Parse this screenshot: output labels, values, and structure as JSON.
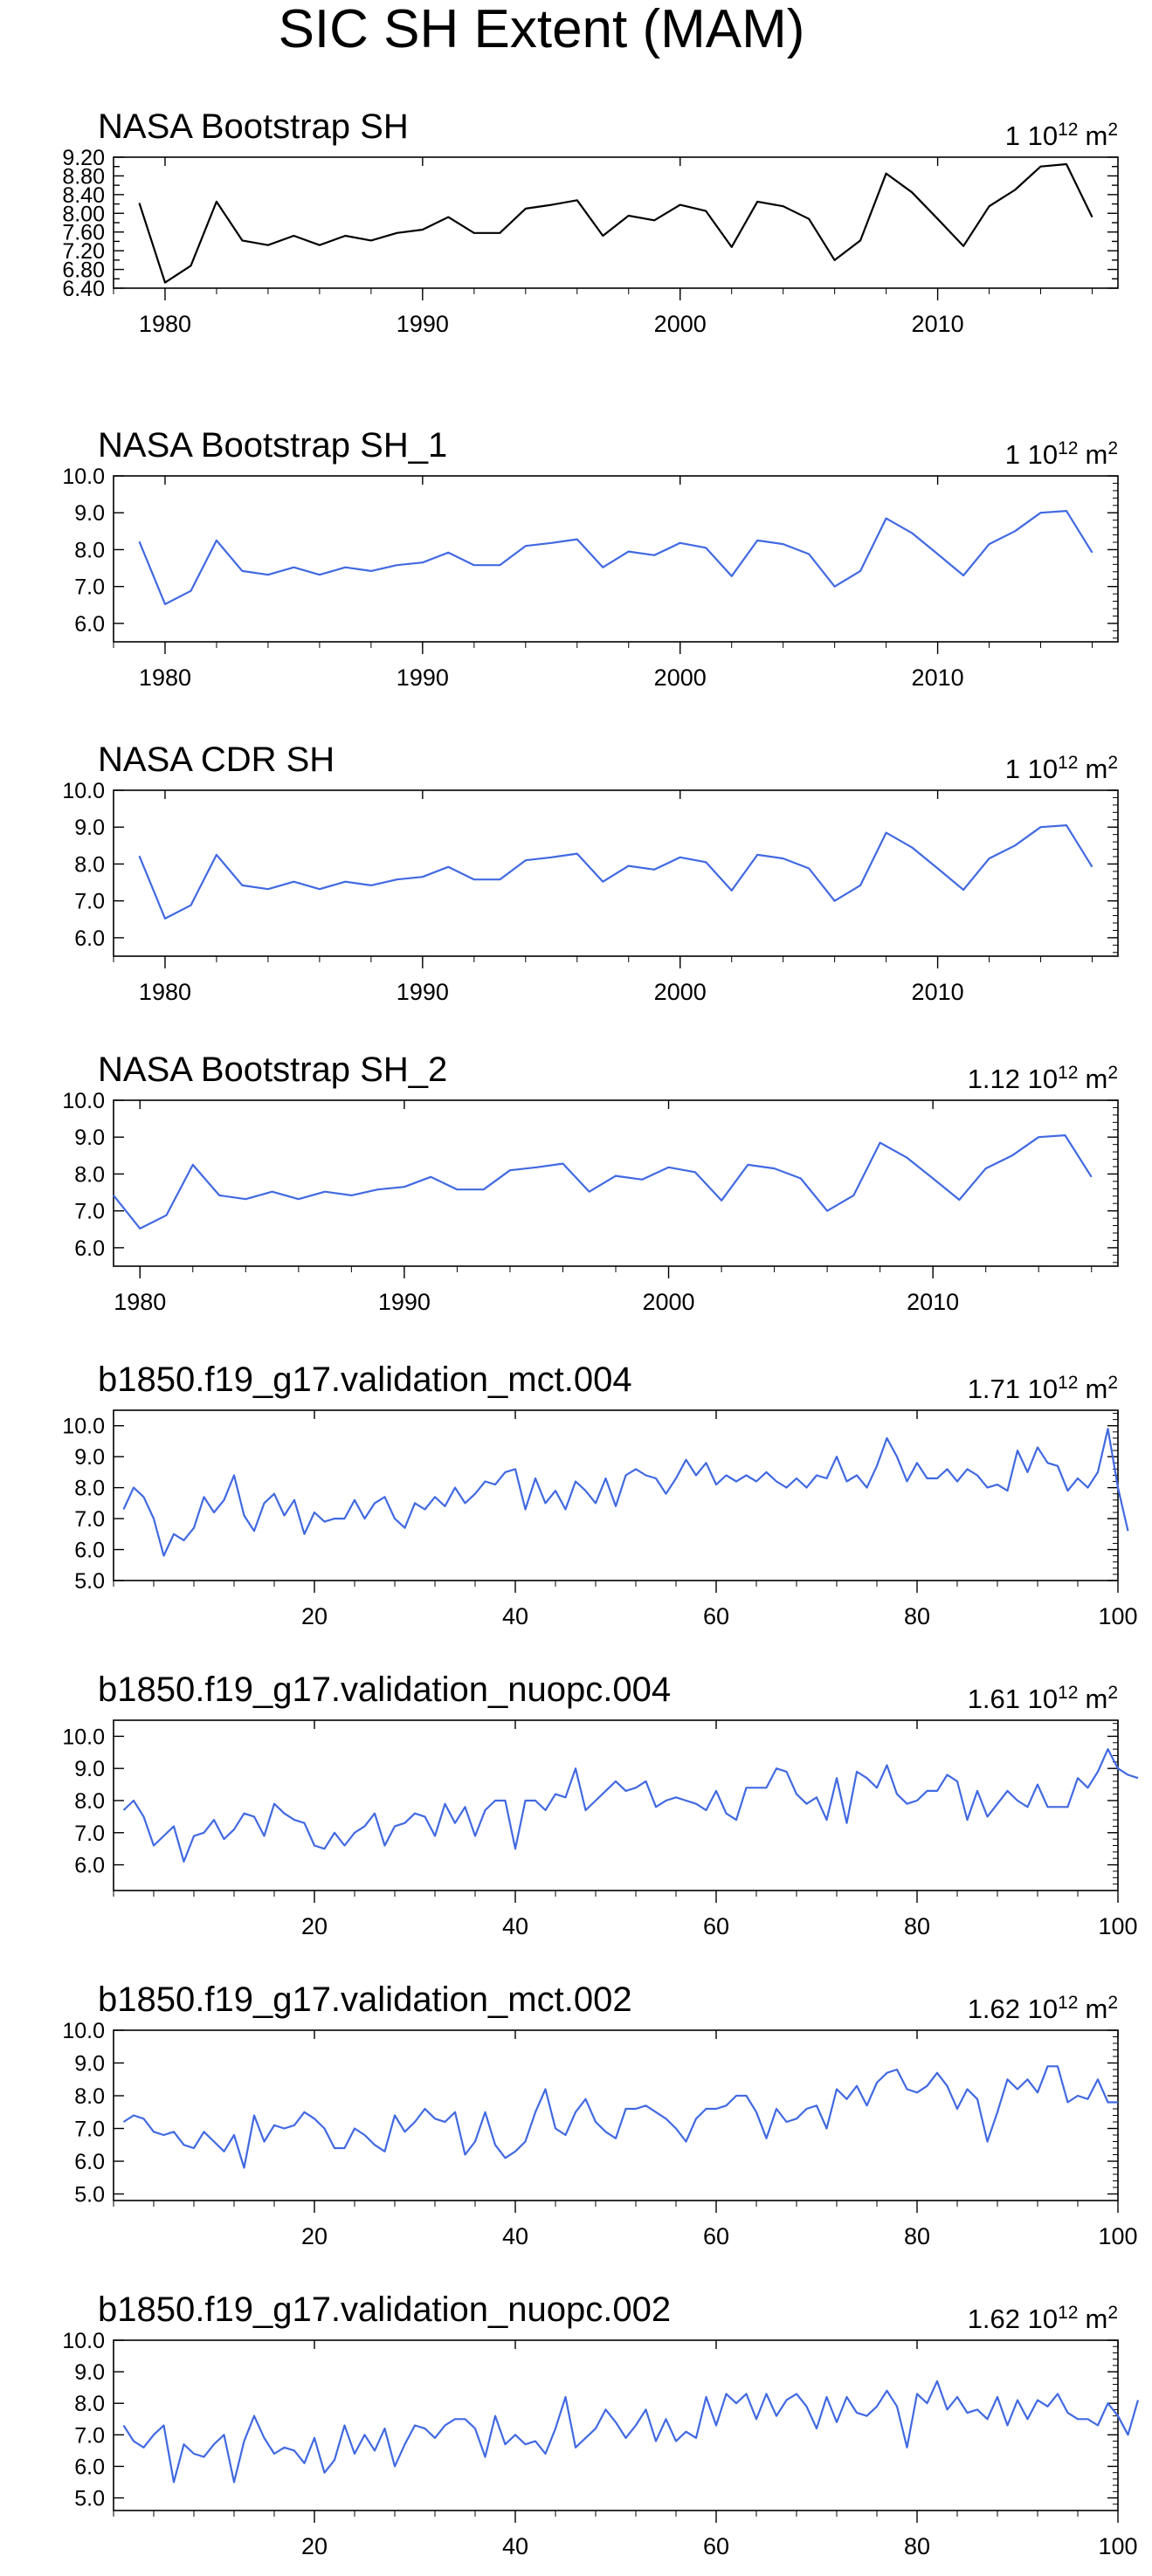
{
  "figure_title": "SIC SH Extent (MAM)",
  "colors": {
    "obs_line": "#000000",
    "model_line": "#4169e1",
    "axis": "#000000"
  },
  "chart_data": [
    {
      "type": "line",
      "title": "NASA Bootstrap SH",
      "scale_prefix": "1",
      "unit_base": "10",
      "unit_exp": "12",
      "unit_suffix": "m",
      "unit_suffix_exp": "2",
      "line_color": "#000000",
      "xlim": [
        1978,
        2017
      ],
      "ylim": [
        6.4,
        9.2
      ],
      "yticks": [
        "6.40",
        "6.80",
        "7.20",
        "7.60",
        "8.00",
        "8.40",
        "8.80",
        "9.20"
      ],
      "ytick_values": [
        6.4,
        6.6,
        6.8,
        7.0,
        7.2,
        7.4,
        7.6,
        7.8,
        8.0,
        8.2,
        8.4,
        8.6,
        8.8,
        9.0,
        9.2
      ],
      "xticks": [
        "1980",
        "1990",
        "2000",
        "2010"
      ],
      "xtick_values": [
        1980,
        1990,
        2000,
        2010
      ],
      "x_start": 1979,
      "values": [
        8.22,
        6.52,
        6.88,
        8.25,
        7.42,
        7.32,
        7.52,
        7.32,
        7.52,
        7.42,
        7.58,
        7.65,
        7.92,
        7.58,
        7.58,
        8.1,
        8.18,
        8.28,
        7.52,
        7.95,
        7.85,
        8.18,
        8.05,
        7.28,
        8.25,
        8.15,
        7.88,
        7.0,
        7.42,
        8.85,
        8.45,
        7.88,
        7.3,
        8.15,
        8.5,
        9.0,
        9.05,
        7.92
      ]
    },
    {
      "type": "line",
      "title": "NASA Bootstrap SH_1",
      "scale_prefix": "1",
      "unit_base": "10",
      "unit_exp": "12",
      "unit_suffix": "m",
      "unit_suffix_exp": "2",
      "line_color": "#4169e1",
      "xlim": [
        1978,
        2017
      ],
      "ylim": [
        5.5,
        10.0
      ],
      "yticks": [
        "6.0",
        "7.0",
        "8.0",
        "9.0",
        "10.0"
      ],
      "ytick_values": [
        6.0,
        7.0,
        8.0,
        9.0,
        10.0
      ],
      "xticks": [
        "1980",
        "1990",
        "2000",
        "2010"
      ],
      "xtick_values": [
        1980,
        1990,
        2000,
        2010
      ],
      "x_start": 1979,
      "values": [
        8.22,
        6.52,
        6.88,
        8.25,
        7.42,
        7.32,
        7.52,
        7.32,
        7.52,
        7.42,
        7.58,
        7.65,
        7.92,
        7.58,
        7.58,
        8.1,
        8.18,
        8.28,
        7.52,
        7.95,
        7.85,
        8.18,
        8.05,
        7.28,
        8.25,
        8.15,
        7.88,
        7.0,
        7.42,
        8.85,
        8.45,
        7.88,
        7.3,
        8.15,
        8.5,
        9.0,
        9.05,
        7.92
      ]
    },
    {
      "type": "line",
      "title": "NASA CDR SH",
      "scale_prefix": "1",
      "unit_base": "10",
      "unit_exp": "12",
      "unit_suffix": "m",
      "unit_suffix_exp": "2",
      "line_color": "#4169e1",
      "xlim": [
        1978,
        2017
      ],
      "ylim": [
        5.5,
        10.0
      ],
      "yticks": [
        "6.0",
        "7.0",
        "8.0",
        "9.0",
        "10.0"
      ],
      "ytick_values": [
        6.0,
        7.0,
        8.0,
        9.0,
        10.0
      ],
      "xticks": [
        "1980",
        "1990",
        "2000",
        "2010"
      ],
      "xtick_values": [
        1980,
        1990,
        2000,
        2010
      ],
      "x_start": 1979,
      "values": [
        8.22,
        6.52,
        6.88,
        8.25,
        7.42,
        7.32,
        7.52,
        7.32,
        7.52,
        7.42,
        7.58,
        7.65,
        7.92,
        7.58,
        7.58,
        8.1,
        8.18,
        8.28,
        7.52,
        7.95,
        7.85,
        8.18,
        8.05,
        7.28,
        8.25,
        8.15,
        7.88,
        7.0,
        7.42,
        8.85,
        8.45,
        7.88,
        7.3,
        8.15,
        8.5,
        9.0,
        9.05,
        7.92
      ]
    },
    {
      "type": "line",
      "title": "NASA Bootstrap SH_2",
      "scale_prefix": "1.12",
      "unit_base": "10",
      "unit_exp": "12",
      "unit_suffix": "m",
      "unit_suffix_exp": "2",
      "line_color": "#4169e1",
      "xlim": [
        1979,
        2017
      ],
      "ylim": [
        5.5,
        10.0
      ],
      "yticks": [
        "6.0",
        "7.0",
        "8.0",
        "9.0",
        "10.0"
      ],
      "ytick_values": [
        6.0,
        7.0,
        8.0,
        9.0,
        10.0
      ],
      "xticks": [
        "1980",
        "1990",
        "2000",
        "2010"
      ],
      "xtick_values": [
        1980,
        1990,
        2000,
        2010
      ],
      "x_start": 1979,
      "values": [
        7.42,
        6.52,
        6.88,
        8.25,
        7.42,
        7.32,
        7.52,
        7.32,
        7.52,
        7.42,
        7.58,
        7.65,
        7.92,
        7.58,
        7.58,
        8.1,
        8.18,
        8.28,
        7.52,
        7.95,
        7.85,
        8.18,
        8.05,
        7.28,
        8.25,
        8.15,
        7.88,
        7.0,
        7.42,
        8.85,
        8.45,
        7.88,
        7.3,
        8.15,
        8.5,
        9.0,
        9.05,
        7.92
      ]
    },
    {
      "type": "line",
      "title": "b1850.f19_g17.validation_mct.004",
      "scale_prefix": "1.71",
      "unit_base": "10",
      "unit_exp": "12",
      "unit_suffix": "m",
      "unit_suffix_exp": "2",
      "line_color": "#4169e1",
      "xlim": [
        0,
        100
      ],
      "ylim": [
        5.0,
        10.5
      ],
      "yticks": [
        "5.0",
        "6.0",
        "7.0",
        "8.0",
        "9.0",
        "10.0"
      ],
      "ytick_values": [
        5.0,
        6.0,
        7.0,
        8.0,
        9.0,
        10.0
      ],
      "xticks": [
        "20",
        "40",
        "60",
        "80",
        "100"
      ],
      "xtick_values": [
        20,
        40,
        60,
        80,
        100
      ],
      "x_start": 1,
      "values": [
        7.3,
        8.0,
        7.7,
        7.0,
        5.8,
        6.5,
        6.3,
        6.7,
        7.7,
        7.2,
        7.6,
        8.4,
        7.1,
        6.6,
        7.5,
        7.8,
        7.1,
        7.6,
        6.5,
        7.2,
        6.9,
        7.0,
        7.0,
        7.6,
        7.0,
        7.5,
        7.7,
        7.0,
        6.7,
        7.5,
        7.3,
        7.7,
        7.4,
        8.0,
        7.5,
        7.8,
        8.2,
        8.1,
        8.5,
        8.6,
        7.3,
        8.3,
        7.5,
        7.9,
        7.3,
        8.2,
        7.9,
        7.5,
        8.3,
        7.4,
        8.4,
        8.6,
        8.4,
        8.3,
        7.8,
        8.3,
        8.9,
        8.4,
        8.8,
        8.1,
        8.4,
        8.2,
        8.4,
        8.2,
        8.5,
        8.2,
        8.0,
        8.3,
        8.0,
        8.4,
        8.3,
        9.0,
        8.2,
        8.4,
        8.0,
        8.7,
        9.6,
        9.0,
        8.2,
        8.8,
        8.3,
        8.3,
        8.6,
        8.2,
        8.6,
        8.4,
        8.0,
        8.1,
        7.9,
        9.2,
        8.5,
        9.3,
        8.8,
        8.7,
        7.9,
        8.3,
        8.0,
        8.5,
        9.9,
        8.0,
        6.6
      ]
    },
    {
      "type": "line",
      "title": "b1850.f19_g17.validation_nuopc.004",
      "scale_prefix": "1.61",
      "unit_base": "10",
      "unit_exp": "12",
      "unit_suffix": "m",
      "unit_suffix_exp": "2",
      "line_color": "#4169e1",
      "xlim": [
        0,
        100
      ],
      "ylim": [
        5.2,
        10.5
      ],
      "yticks": [
        "6.0",
        "7.0",
        "8.0",
        "9.0",
        "10.0"
      ],
      "ytick_values": [
        6.0,
        7.0,
        8.0,
        9.0,
        10.0
      ],
      "xticks": [
        "20",
        "40",
        "60",
        "80",
        "100"
      ],
      "xtick_values": [
        20,
        40,
        60,
        80,
        100
      ],
      "x_start": 1,
      "values": [
        7.7,
        8.0,
        7.5,
        6.6,
        6.9,
        7.2,
        6.1,
        6.9,
        7.0,
        7.4,
        6.8,
        7.1,
        7.6,
        7.5,
        6.9,
        7.9,
        7.6,
        7.4,
        7.3,
        6.6,
        6.5,
        7.0,
        6.6,
        7.0,
        7.2,
        7.6,
        6.6,
        7.2,
        7.3,
        7.6,
        7.5,
        6.9,
        7.9,
        7.3,
        7.8,
        6.9,
        7.7,
        8.0,
        8.0,
        6.5,
        8.0,
        8.0,
        7.7,
        8.2,
        8.1,
        9.0,
        7.7,
        8.0,
        8.3,
        8.6,
        8.3,
        8.4,
        8.6,
        7.8,
        8.0,
        8.1,
        8.0,
        7.9,
        7.7,
        8.3,
        7.6,
        7.4,
        8.4,
        8.4,
        8.4,
        9.0,
        8.9,
        8.2,
        7.9,
        8.1,
        7.4,
        8.7,
        7.3,
        8.9,
        8.7,
        8.4,
        9.1,
        8.2,
        7.9,
        8.0,
        8.3,
        8.3,
        8.8,
        8.6,
        7.4,
        8.3,
        7.5,
        7.9,
        8.3,
        8.0,
        7.8,
        8.5,
        7.8,
        7.8,
        7.8,
        8.7,
        8.4,
        8.9,
        9.6,
        9.0,
        8.8,
        8.7
      ]
    },
    {
      "type": "line",
      "title": "b1850.f19_g17.validation_mct.002",
      "scale_prefix": "1.62",
      "unit_base": "10",
      "unit_exp": "12",
      "unit_suffix": "m",
      "unit_suffix_exp": "2",
      "line_color": "#4169e1",
      "xlim": [
        0,
        100
      ],
      "ylim": [
        4.8,
        10.0
      ],
      "yticks": [
        "5.0",
        "6.0",
        "7.0",
        "8.0",
        "9.0",
        "10.0"
      ],
      "ytick_values": [
        5.0,
        6.0,
        7.0,
        8.0,
        9.0,
        10.0
      ],
      "xticks": [
        "20",
        "40",
        "60",
        "80",
        "100"
      ],
      "xtick_values": [
        20,
        40,
        60,
        80,
        100
      ],
      "x_start": 1,
      "values": [
        7.2,
        7.4,
        7.3,
        6.9,
        6.8,
        6.9,
        6.5,
        6.4,
        6.9,
        6.6,
        6.3,
        6.8,
        5.8,
        7.4,
        6.6,
        7.1,
        7.0,
        7.1,
        7.5,
        7.3,
        7.0,
        6.4,
        6.4,
        7.0,
        6.8,
        6.5,
        6.3,
        7.4,
        6.9,
        7.2,
        7.6,
        7.3,
        7.2,
        7.5,
        6.2,
        6.6,
        7.5,
        6.5,
        6.1,
        6.3,
        6.6,
        7.5,
        8.2,
        7.0,
        6.8,
        7.5,
        7.9,
        7.2,
        6.9,
        6.7,
        7.6,
        7.6,
        7.7,
        7.5,
        7.3,
        7.0,
        6.6,
        7.3,
        7.6,
        7.6,
        7.7,
        8.0,
        8.0,
        7.5,
        6.7,
        7.6,
        7.2,
        7.3,
        7.6,
        7.7,
        7.0,
        8.2,
        7.9,
        8.3,
        7.7,
        8.4,
        8.7,
        8.8,
        8.2,
        8.1,
        8.3,
        8.7,
        8.3,
        7.6,
        8.2,
        7.9,
        6.6,
        7.5,
        8.5,
        8.2,
        8.5,
        8.1,
        8.9,
        8.9,
        7.8,
        8.0,
        7.9,
        8.5,
        7.8,
        7.8
      ]
    },
    {
      "type": "line",
      "title": "b1850.f19_g17.validation_nuopc.002",
      "scale_prefix": "1.62",
      "unit_base": "10",
      "unit_exp": "12",
      "unit_suffix": "m",
      "unit_suffix_exp": "2",
      "line_color": "#4169e1",
      "xlim": [
        0,
        100
      ],
      "ylim": [
        4.6,
        10.0
      ],
      "yticks": [
        "5.0",
        "6.0",
        "7.0",
        "8.0",
        "9.0",
        "10.0"
      ],
      "ytick_values": [
        5.0,
        6.0,
        7.0,
        8.0,
        9.0,
        10.0
      ],
      "xticks": [
        "20",
        "40",
        "60",
        "80",
        "100"
      ],
      "xtick_values": [
        20,
        40,
        60,
        80,
        100
      ],
      "x_start": 1,
      "values": [
        7.3,
        6.8,
        6.6,
        7.0,
        7.3,
        5.5,
        6.7,
        6.4,
        6.3,
        6.7,
        7.0,
        5.5,
        6.8,
        7.6,
        6.9,
        6.4,
        6.6,
        6.5,
        6.1,
        6.9,
        5.8,
        6.2,
        7.3,
        6.4,
        7.0,
        6.5,
        7.2,
        6.0,
        6.7,
        7.3,
        7.2,
        6.9,
        7.3,
        7.5,
        7.5,
        7.2,
        6.3,
        7.6,
        6.7,
        7.0,
        6.7,
        6.8,
        6.4,
        7.2,
        8.2,
        6.6,
        6.9,
        7.2,
        7.8,
        7.4,
        6.9,
        7.3,
        7.8,
        6.8,
        7.5,
        6.8,
        7.1,
        6.9,
        8.2,
        7.3,
        8.3,
        8.0,
        8.3,
        7.5,
        8.3,
        7.6,
        8.1,
        8.3,
        7.9,
        7.2,
        8.2,
        7.4,
        8.2,
        7.7,
        7.6,
        7.9,
        8.4,
        7.9,
        6.6,
        8.3,
        8.0,
        8.7,
        7.8,
        8.2,
        7.7,
        7.8,
        7.5,
        8.2,
        7.3,
        8.1,
        7.5,
        8.1,
        7.9,
        8.3,
        7.7,
        7.5,
        7.5,
        7.3,
        8.0,
        7.6,
        7.0,
        8.1
      ]
    }
  ]
}
